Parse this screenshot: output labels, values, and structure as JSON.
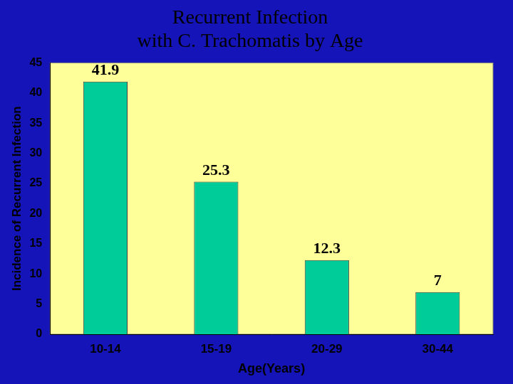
{
  "chart_data": {
    "type": "bar",
    "title": [
      "Recurrent Infection",
      "with C. Trachomatis by Age"
    ],
    "x_label": "Age(Years)",
    "y_label": "Incidence of Recurrent Infection",
    "categories": [
      "10-14",
      "15-19",
      "20-29",
      "30-44"
    ],
    "values": [
      41.9,
      25.3,
      12.3,
      7
    ],
    "color": "#00cc99",
    "ylim": [
      0,
      45
    ],
    "yticks": [
      0,
      5,
      10,
      15,
      20,
      25,
      30,
      35,
      40,
      45
    ],
    "grid": false,
    "data_labels": true
  }
}
